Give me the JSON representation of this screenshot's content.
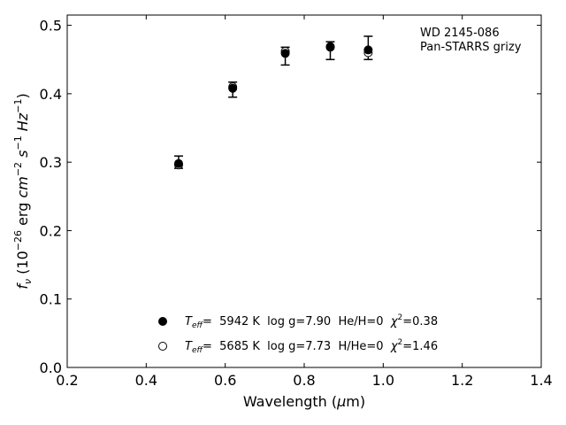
{
  "chart_data": {
    "type": "scatter",
    "title": "",
    "xlabel": "Wavelength (μm)",
    "ylabel": "f_ν (10^-26 erg cm^-2 s^-1 Hz^-1)",
    "xlim": [
      0.2,
      1.4
    ],
    "ylim": [
      0.0,
      0.515
    ],
    "xticks": [
      "0.2",
      "0.4",
      "0.6",
      "0.8",
      "1.0",
      "1.2",
      "1.4"
    ],
    "yticks": [
      "0.0",
      "0.1",
      "0.2",
      "0.3",
      "0.4",
      "0.5"
    ],
    "grid": false,
    "annotation": [
      "WD 2145-086",
      "Pan-STARRS grizy"
    ],
    "observed": {
      "x": [
        0.482,
        0.619,
        0.752,
        0.866,
        0.962
      ],
      "y": [
        0.3,
        0.406,
        0.455,
        0.463,
        0.467
      ],
      "err": [
        0.009,
        0.011,
        0.013,
        0.013,
        0.017
      ]
    },
    "series": [
      {
        "name": "T_eff= 5942 K log g=7.90 He/H=0 χ²=0.38",
        "marker": "filled-circle",
        "x": [
          0.482,
          0.619,
          0.752,
          0.866,
          0.962
        ],
        "y": [
          0.298,
          0.408,
          0.459,
          0.469,
          0.464
        ]
      },
      {
        "name": "T_eff= 5685 K log g=7.73 H/He=0 χ²=1.46",
        "marker": "open-circle",
        "x": [
          0.482,
          0.619,
          0.752,
          0.866,
          0.962
        ],
        "y": [
          0.296,
          0.41,
          0.462,
          0.468,
          0.46
        ]
      }
    ],
    "legend": {
      "placement": "bottom-center",
      "entries": [
        {
          "teff_label": "T",
          "teff_sub": "eff",
          "rest1": "=  5942 K  log g=7.90  He/H=0  ",
          "chi": "χ",
          "chi_sup": "2",
          "rest2": "=0.38"
        },
        {
          "teff_label": "T",
          "teff_sub": "eff",
          "rest1": "=  5685 K  log g=7.73  H/He=0  ",
          "chi": "χ",
          "chi_sup": "2",
          "rest2": "=1.46"
        }
      ]
    },
    "colors": {
      "marker": "#000000",
      "axis": "#000000"
    }
  }
}
